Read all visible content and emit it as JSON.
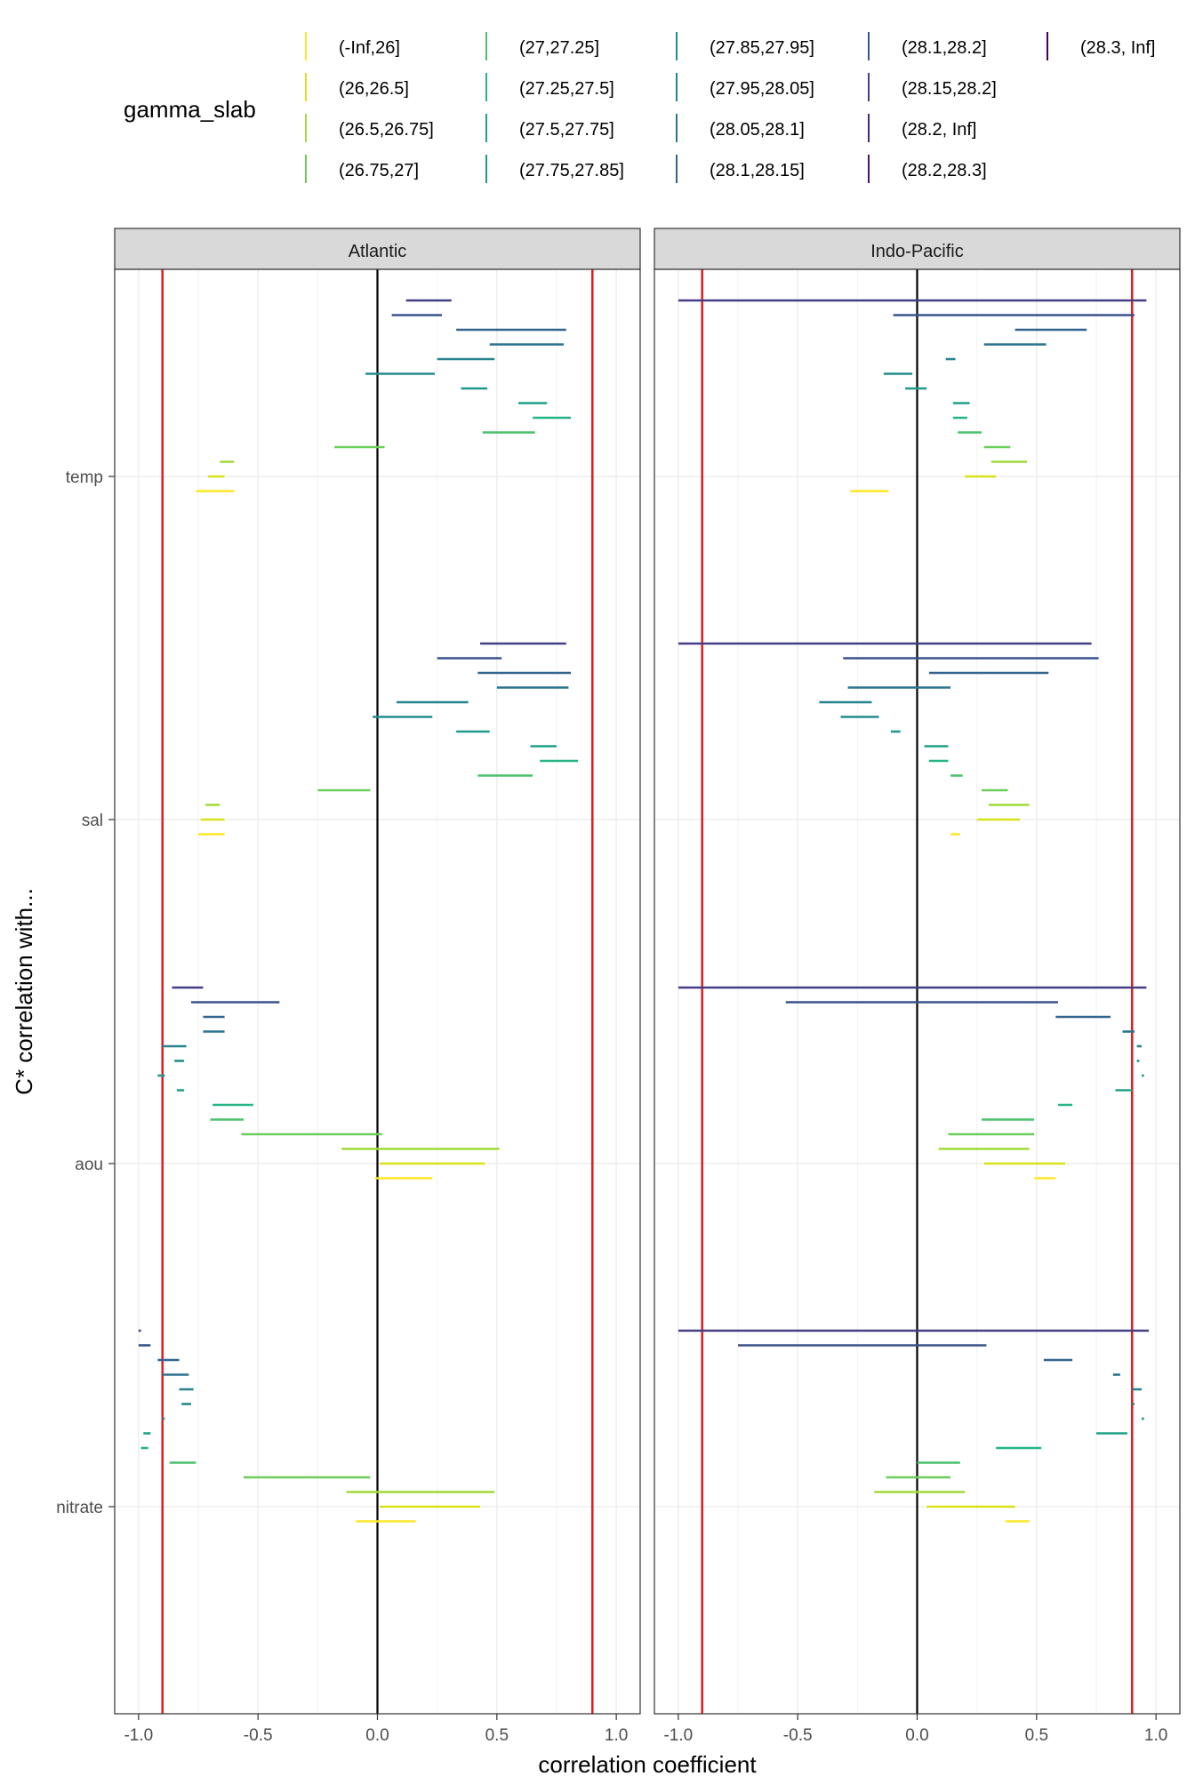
{
  "chart_data": {
    "type": "interval",
    "xlabel": "correlation coefficient",
    "ylabel": "C* correlation with...",
    "xlim": [
      -1.1,
      1.1
    ],
    "x_ticks": [
      "-1.0",
      "-0.5",
      "0.0",
      "0.5",
      "1.0"
    ],
    "x_tick_values": [
      -1.0,
      -0.5,
      0.0,
      0.5,
      1.0
    ],
    "reference_lines": {
      "zero": 0.0,
      "thresholds": [
        -0.9,
        0.9
      ],
      "zero_color": "#000000",
      "threshold_color": "#e41a1c"
    },
    "grid": true,
    "facets": [
      "Atlantic",
      "Indo-Pacific"
    ],
    "variables": [
      "temp",
      "sal",
      "aou",
      "nitrate"
    ],
    "legend": {
      "title": "gamma_slab",
      "position": "top",
      "items": [
        {
          "label": "(-Inf,26]",
          "color": "#FDE725"
        },
        {
          "label": "(26,26.5]",
          "color": "#D8E219"
        },
        {
          "label": "(26.5,26.75]",
          "color": "#A0DA39"
        },
        {
          "label": "(26.75,27]",
          "color": "#6BCD5A"
        },
        {
          "label": "(27,27.25]",
          "color": "#4AC16D"
        },
        {
          "label": "(27.25,27.5]",
          "color": "#25B584"
        },
        {
          "label": "(27.5,27.75]",
          "color": "#1FA187"
        },
        {
          "label": "(27.75,27.85]",
          "color": "#1F9A8A"
        },
        {
          "label": "(27.85,27.95]",
          "color": "#218E8D"
        },
        {
          "label": "(27.95,28.05]",
          "color": "#26828E"
        },
        {
          "label": "(28.05,28.1]",
          "color": "#2C728E"
        },
        {
          "label": "(28.1,28.15]",
          "color": "#33638D"
        },
        {
          "label": "(28.1,28.2]",
          "color": "#3B528B"
        },
        {
          "label": "(28.15,28.2]",
          "color": "#433E85"
        },
        {
          "label": "(28.2, Inf]",
          "color": "#472A7A"
        },
        {
          "label": "(28.2,28.3]",
          "color": "#481668"
        },
        {
          "label": "(28.3, Inf]",
          "color": "#440154"
        }
      ]
    },
    "series": [
      {
        "facet": "Atlantic",
        "variable": "temp",
        "intervals": [
          {
            "slab": 12,
            "xmin": 0.12,
            "xmax": 0.31
          },
          {
            "slab": 11,
            "xmin": 0.06,
            "xmax": 0.27
          },
          {
            "slab": 10,
            "xmin": 0.33,
            "xmax": 0.79
          },
          {
            "slab": 9,
            "xmin": 0.47,
            "xmax": 0.78
          },
          {
            "slab": 8,
            "xmin": 0.25,
            "xmax": 0.49
          },
          {
            "slab": 7,
            "xmin": -0.05,
            "xmax": 0.24
          },
          {
            "slab": 6,
            "xmin": 0.35,
            "xmax": 0.46
          },
          {
            "slab": 5,
            "xmin": 0.59,
            "xmax": 0.71
          },
          {
            "slab": 4,
            "xmin": 0.65,
            "xmax": 0.81
          },
          {
            "slab": 3,
            "xmin": 0.44,
            "xmax": 0.66
          },
          {
            "slab": 2,
            "xmin": -0.18,
            "xmax": 0.03
          },
          {
            "slab": 1,
            "xmin": -0.66,
            "xmax": -0.6
          },
          {
            "slab": 0,
            "xmin": -0.71,
            "xmax": -0.64
          },
          {
            "slab": -1,
            "xmin": -0.76,
            "xmax": -0.6
          }
        ]
      },
      {
        "facet": "Atlantic",
        "variable": "sal",
        "intervals": [
          {
            "slab": 12,
            "xmin": 0.43,
            "xmax": 0.79
          },
          {
            "slab": 11,
            "xmin": 0.25,
            "xmax": 0.52
          },
          {
            "slab": 10,
            "xmin": 0.42,
            "xmax": 0.81
          },
          {
            "slab": 9,
            "xmin": 0.5,
            "xmax": 0.8
          },
          {
            "slab": 8,
            "xmin": 0.08,
            "xmax": 0.38
          },
          {
            "slab": 7,
            "xmin": -0.02,
            "xmax": 0.23
          },
          {
            "slab": 6,
            "xmin": 0.33,
            "xmax": 0.47
          },
          {
            "slab": 5,
            "xmin": 0.64,
            "xmax": 0.75
          },
          {
            "slab": 4,
            "xmin": 0.68,
            "xmax": 0.84
          },
          {
            "slab": 3,
            "xmin": 0.42,
            "xmax": 0.65
          },
          {
            "slab": 2,
            "xmin": -0.25,
            "xmax": -0.03
          },
          {
            "slab": 1,
            "xmin": -0.72,
            "xmax": -0.66
          },
          {
            "slab": 0,
            "xmin": -0.74,
            "xmax": -0.64
          },
          {
            "slab": -1,
            "xmin": -0.75,
            "xmax": -0.64
          }
        ]
      },
      {
        "facet": "Atlantic",
        "variable": "aou",
        "intervals": [
          {
            "slab": 12,
            "xmin": -0.86,
            "xmax": -0.73
          },
          {
            "slab": 11,
            "xmin": -0.78,
            "xmax": -0.41
          },
          {
            "slab": 10,
            "xmin": -0.73,
            "xmax": -0.64
          },
          {
            "slab": 9,
            "xmin": -0.73,
            "xmax": -0.64
          },
          {
            "slab": 8,
            "xmin": -0.9,
            "xmax": -0.8
          },
          {
            "slab": 7,
            "xmin": -0.85,
            "xmax": -0.81
          },
          {
            "slab": 6,
            "xmin": -0.92,
            "xmax": -0.89
          },
          {
            "slab": 5,
            "xmin": -0.84,
            "xmax": -0.81
          },
          {
            "slab": 4,
            "xmin": -0.69,
            "xmax": -0.52
          },
          {
            "slab": 3,
            "xmin": -0.7,
            "xmax": -0.56
          },
          {
            "slab": 2,
            "xmin": -0.57,
            "xmax": 0.02
          },
          {
            "slab": 1,
            "xmin": -0.15,
            "xmax": 0.51
          },
          {
            "slab": 0,
            "xmin": 0.01,
            "xmax": 0.45
          },
          {
            "slab": -1,
            "xmin": -0.01,
            "xmax": 0.23
          }
        ]
      },
      {
        "facet": "Atlantic",
        "variable": "nitrate",
        "intervals": [
          {
            "slab": 12,
            "xmin": -1.0,
            "xmax": -0.99
          },
          {
            "slab": 11,
            "xmin": -1.0,
            "xmax": -0.95
          },
          {
            "slab": 10,
            "xmin": -0.92,
            "xmax": -0.83
          },
          {
            "slab": 9,
            "xmin": -0.9,
            "xmax": -0.79
          },
          {
            "slab": 8,
            "xmin": -0.83,
            "xmax": -0.77
          },
          {
            "slab": 7,
            "xmin": -0.82,
            "xmax": -0.78
          },
          {
            "slab": 6,
            "xmin": -0.9,
            "xmax": -0.89
          },
          {
            "slab": 5,
            "xmin": -0.98,
            "xmax": -0.95
          },
          {
            "slab": 4,
            "xmin": -0.99,
            "xmax": -0.96
          },
          {
            "slab": 3,
            "xmin": -0.87,
            "xmax": -0.76
          },
          {
            "slab": 2,
            "xmin": -0.56,
            "xmax": -0.03
          },
          {
            "slab": 1,
            "xmin": -0.13,
            "xmax": 0.49
          },
          {
            "slab": 0,
            "xmin": 0.01,
            "xmax": 0.43
          },
          {
            "slab": -1,
            "xmin": -0.09,
            "xmax": 0.16
          }
        ]
      },
      {
        "facet": "Indo-Pacific",
        "variable": "temp",
        "intervals": [
          {
            "slab": 12,
            "xmin": -1.0,
            "xmax": 0.96
          },
          {
            "slab": 11,
            "xmin": -0.1,
            "xmax": 0.91
          },
          {
            "slab": 10,
            "xmin": 0.41,
            "xmax": 0.71
          },
          {
            "slab": 9,
            "xmin": 0.28,
            "xmax": 0.54
          },
          {
            "slab": 8,
            "xmin": 0.12,
            "xmax": 0.16
          },
          {
            "slab": 7,
            "xmin": -0.14,
            "xmax": -0.02
          },
          {
            "slab": 6,
            "xmin": -0.05,
            "xmax": 0.04
          },
          {
            "slab": 5,
            "xmin": 0.15,
            "xmax": 0.22
          },
          {
            "slab": 4,
            "xmin": 0.15,
            "xmax": 0.21
          },
          {
            "slab": 3,
            "xmin": 0.17,
            "xmax": 0.27
          },
          {
            "slab": 2,
            "xmin": 0.28,
            "xmax": 0.39
          },
          {
            "slab": 1,
            "xmin": 0.31,
            "xmax": 0.46
          },
          {
            "slab": 0,
            "xmin": 0.2,
            "xmax": 0.33
          },
          {
            "slab": -1,
            "xmin": -0.28,
            "xmax": -0.12
          }
        ]
      },
      {
        "facet": "Indo-Pacific",
        "variable": "sal",
        "intervals": [
          {
            "slab": 12,
            "xmin": -1.0,
            "xmax": 0.73
          },
          {
            "slab": 11,
            "xmin": -0.31,
            "xmax": 0.76
          },
          {
            "slab": 10,
            "xmin": 0.05,
            "xmax": 0.55
          },
          {
            "slab": 9,
            "xmin": -0.29,
            "xmax": 0.14
          },
          {
            "slab": 8,
            "xmin": -0.41,
            "xmax": -0.19
          },
          {
            "slab": 7,
            "xmin": -0.32,
            "xmax": -0.16
          },
          {
            "slab": 6,
            "xmin": -0.11,
            "xmax": -0.07
          },
          {
            "slab": 5,
            "xmin": 0.03,
            "xmax": 0.13
          },
          {
            "slab": 4,
            "xmin": 0.05,
            "xmax": 0.13
          },
          {
            "slab": 3,
            "xmin": 0.14,
            "xmax": 0.19
          },
          {
            "slab": 2,
            "xmin": 0.27,
            "xmax": 0.38
          },
          {
            "slab": 1,
            "xmin": 0.3,
            "xmax": 0.47
          },
          {
            "slab": 0,
            "xmin": 0.25,
            "xmax": 0.43
          },
          {
            "slab": -1,
            "xmin": 0.14,
            "xmax": 0.18
          }
        ]
      },
      {
        "facet": "Indo-Pacific",
        "variable": "aou",
        "intervals": [
          {
            "slab": 12,
            "xmin": -1.0,
            "xmax": 0.96
          },
          {
            "slab": 11,
            "xmin": -0.55,
            "xmax": 0.59
          },
          {
            "slab": 10,
            "xmin": 0.58,
            "xmax": 0.81
          },
          {
            "slab": 9,
            "xmin": 0.86,
            "xmax": 0.91
          },
          {
            "slab": 8,
            "xmin": 0.92,
            "xmax": 0.94
          },
          {
            "slab": 7,
            "xmin": 0.92,
            "xmax": 0.93
          },
          {
            "slab": 6,
            "xmin": 0.94,
            "xmax": 0.95
          },
          {
            "slab": 5,
            "xmin": 0.83,
            "xmax": 0.9
          },
          {
            "slab": 4,
            "xmin": 0.59,
            "xmax": 0.65
          },
          {
            "slab": 3,
            "xmin": 0.27,
            "xmax": 0.49
          },
          {
            "slab": 2,
            "xmin": 0.13,
            "xmax": 0.49
          },
          {
            "slab": 1,
            "xmin": 0.09,
            "xmax": 0.47
          },
          {
            "slab": 0,
            "xmin": 0.28,
            "xmax": 0.62
          },
          {
            "slab": -1,
            "xmin": 0.49,
            "xmax": 0.58
          }
        ]
      },
      {
        "facet": "Indo-Pacific",
        "variable": "nitrate",
        "intervals": [
          {
            "slab": 12,
            "xmin": -1.0,
            "xmax": 0.97
          },
          {
            "slab": 11,
            "xmin": -0.75,
            "xmax": 0.29
          },
          {
            "slab": 10,
            "xmin": 0.53,
            "xmax": 0.65
          },
          {
            "slab": 9,
            "xmin": 0.82,
            "xmax": 0.85
          },
          {
            "slab": 8,
            "xmin": 0.9,
            "xmax": 0.94
          },
          {
            "slab": 7,
            "xmin": 0.9,
            "xmax": 0.91
          },
          {
            "slab": 6,
            "xmin": 0.94,
            "xmax": 0.95
          },
          {
            "slab": 5,
            "xmin": 0.75,
            "xmax": 0.88
          },
          {
            "slab": 4,
            "xmin": 0.33,
            "xmax": 0.52
          },
          {
            "slab": 3,
            "xmin": 0.0,
            "xmax": 0.18
          },
          {
            "slab": 2,
            "xmin": -0.13,
            "xmax": 0.14
          },
          {
            "slab": 1,
            "xmin": -0.18,
            "xmax": 0.2
          },
          {
            "slab": 0,
            "xmin": 0.04,
            "xmax": 0.41
          },
          {
            "slab": -1,
            "xmin": 0.37,
            "xmax": 0.47
          }
        ]
      }
    ]
  }
}
